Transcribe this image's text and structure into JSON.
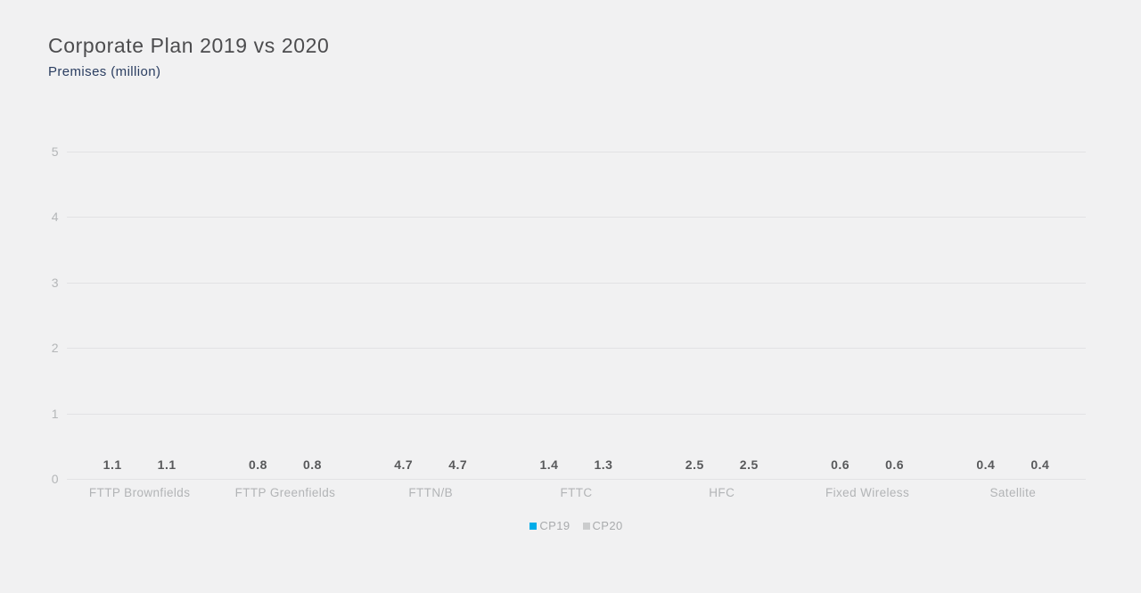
{
  "header": {
    "title": "Corporate Plan 2019 vs 2020",
    "subtitle": "Premises (million)"
  },
  "colors": {
    "background": "#f1f1f2",
    "title": "#4c4c4e",
    "subtitle": "#2b3e61",
    "gridline": "#e2e2e4",
    "tick_label": "#b4b6b8",
    "value_label": "#58595b",
    "category_label": "#b2b4b6",
    "legend_label": "#a9abad"
  },
  "chart_data": {
    "type": "bar",
    "title": "Corporate Plan 2019 vs 2020",
    "subtitle": "Premises (million)",
    "ylabel": "Premises (million)",
    "xlabel": "",
    "categories": [
      "FTTP Brownfields",
      "FTTP Greenfields",
      "FTTN/B",
      "FTTC",
      "HFC",
      "Fixed Wireless",
      "Satellite"
    ],
    "series": [
      {
        "name": "CP19",
        "color": "#00ace9",
        "values": [
          1.1,
          0.8,
          4.7,
          1.4,
          2.5,
          0.6,
          0.4
        ]
      },
      {
        "name": "CP20",
        "color": "#cbcccd",
        "values": [
          1.1,
          0.8,
          4.7,
          1.3,
          2.5,
          0.6,
          0.4
        ]
      }
    ],
    "ylim": [
      0,
      5
    ],
    "yticks": [
      0,
      1,
      2,
      3,
      4,
      5
    ],
    "grid": true,
    "value_labels": true,
    "value_label_decimals": 1,
    "legend_position": "bottom"
  }
}
